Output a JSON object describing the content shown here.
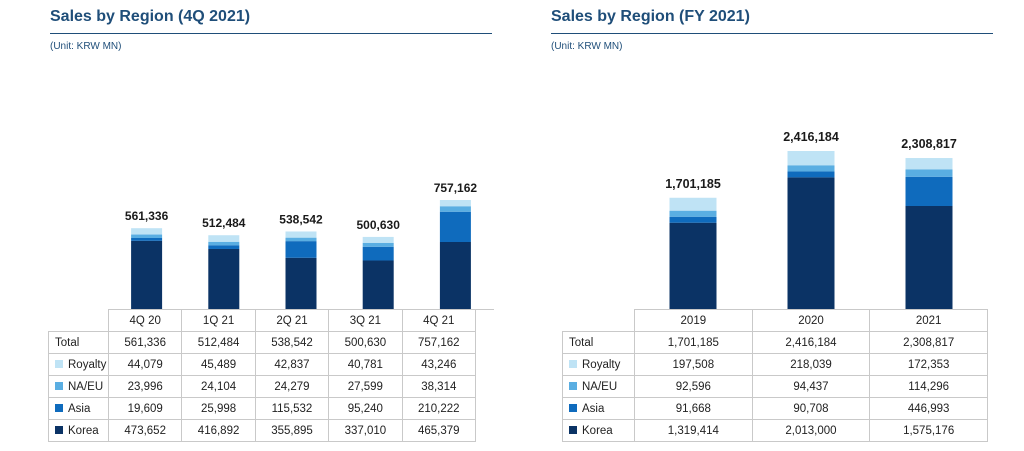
{
  "colors": {
    "title": "#1f4e79",
    "Korea": "#0b3365",
    "Asia": "#0f6bbd",
    "NA/EU": "#5aaee2",
    "Royalty": "#bfe3f5"
  },
  "chart_data": [
    {
      "type": "bar",
      "stacked": true,
      "title": "Sales by Region (4Q 2021)",
      "subtitle": "(Unit: KRW MN)",
      "categories": [
        "4Q 20",
        "1Q 21",
        "2Q 21",
        "3Q 21",
        "4Q 21"
      ],
      "series": [
        {
          "name": "Korea",
          "values": [
            473652,
            416892,
            355895,
            337010,
            465379
          ]
        },
        {
          "name": "Asia",
          "values": [
            19609,
            25998,
            115532,
            95240,
            210222
          ]
        },
        {
          "name": "NA/EU",
          "values": [
            23996,
            24104,
            24279,
            27599,
            38314
          ]
        },
        {
          "name": "Royalty",
          "values": [
            44079,
            45489,
            42837,
            40781,
            43246
          ]
        }
      ],
      "totals": [
        561336,
        512484,
        538542,
        500630,
        757162
      ],
      "total_labels": [
        "561,336",
        "512,484",
        "538,542",
        "500,630",
        "757,162"
      ],
      "table": {
        "header": [
          "",
          "4Q 20",
          "1Q 21",
          "2Q 21",
          "3Q 21",
          "4Q 21"
        ],
        "rows": [
          {
            "label": "Total",
            "swatch": "",
            "values": [
              "561,336",
              "512,484",
              "538,542",
              "500,630",
              "757,162"
            ]
          },
          {
            "label": "Royalty",
            "swatch": "#bfe3f5",
            "values": [
              "44,079",
              "45,489",
              "42,837",
              "40,781",
              "43,246"
            ]
          },
          {
            "label": "NA/EU",
            "swatch": "#5aaee2",
            "values": [
              "23,996",
              "24,104",
              "24,279",
              "27,599",
              "38,314"
            ]
          },
          {
            "label": "Asia",
            "swatch": "#0f6bbd",
            "values": [
              "19,609",
              "25,998",
              "115,532",
              "95,240",
              "210,222"
            ]
          },
          {
            "label": "Korea",
            "swatch": "#0b3365",
            "values": [
              "473,652",
              "416,892",
              "355,895",
              "337,010",
              "465,379"
            ]
          }
        ]
      }
    },
    {
      "type": "bar",
      "stacked": true,
      "title": "Sales by Region (FY 2021)",
      "subtitle": "(Unit: KRW MN)",
      "categories": [
        "2019",
        "2020",
        "2021"
      ],
      "series": [
        {
          "name": "Korea",
          "values": [
            1319414,
            2013000,
            1575176
          ]
        },
        {
          "name": "Asia",
          "values": [
            91668,
            90708,
            446993
          ]
        },
        {
          "name": "NA/EU",
          "values": [
            92596,
            94437,
            114296
          ]
        },
        {
          "name": "Royalty",
          "values": [
            197508,
            218039,
            172353
          ]
        }
      ],
      "totals": [
        1701185,
        2416184,
        2308817
      ],
      "total_labels": [
        "1,701,185",
        "2,416,184",
        "2,308,817"
      ],
      "table": {
        "header": [
          "",
          "2019",
          "2020",
          "2021"
        ],
        "rows": [
          {
            "label": "Total",
            "swatch": "",
            "values": [
              "1,701,185",
              "2,416,184",
              "2,308,817"
            ]
          },
          {
            "label": "Royalty",
            "swatch": "#bfe3f5",
            "values": [
              "197,508",
              "218,039",
              "172,353"
            ]
          },
          {
            "label": "NA/EU",
            "swatch": "#5aaee2",
            "values": [
              "92,596",
              "94,437",
              "114,296"
            ]
          },
          {
            "label": "Asia",
            "swatch": "#0f6bbd",
            "values": [
              "91,668",
              "90,708",
              "446,993"
            ]
          },
          {
            "label": "Korea",
            "swatch": "#0b3365",
            "values": [
              "1,319,414",
              "2,013,000",
              "1,575,176"
            ]
          }
        ]
      }
    }
  ]
}
